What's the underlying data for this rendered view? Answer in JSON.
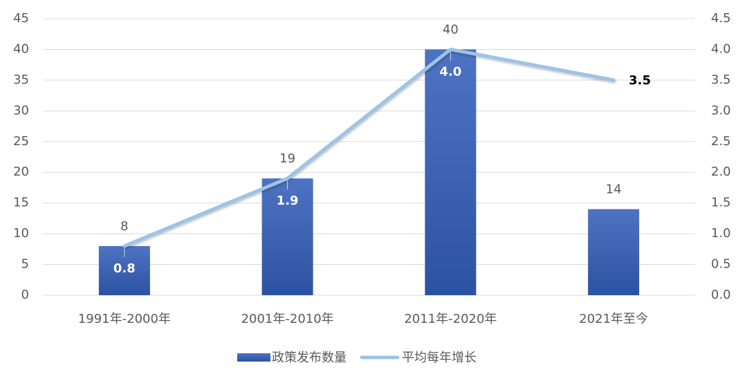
{
  "chart_data": {
    "type": "bar-line",
    "categories": [
      "1991年-2000年",
      "2001年-2010年",
      "2011年-2020年",
      "2021年至今"
    ],
    "series": [
      {
        "name": "政策发布数量",
        "type": "bar",
        "color": "#3a5fb0",
        "values": [
          8,
          19,
          40,
          14
        ]
      },
      {
        "name": "平均每年增长",
        "type": "line",
        "axis": "y2",
        "color": "#9dc3e6",
        "values": [
          0.8,
          1.9,
          4.0,
          3.5
        ],
        "value_labels": [
          "0.8",
          "1.9",
          "4.0",
          "3.5"
        ]
      }
    ],
    "ylim": [
      0,
      45
    ],
    "yticks": [
      0,
      5,
      10,
      15,
      20,
      25,
      30,
      35,
      40,
      45
    ],
    "y2lim": [
      0,
      4.5
    ],
    "y2ticks": [
      {
        "value": 0,
        "label": "0.0"
      },
      0.5,
      {
        "value": 1,
        "label": "1.0"
      },
      1.5,
      {
        "value": 2,
        "label": "2.0"
      },
      2.5,
      {
        "value": 3,
        "label": "3.0"
      },
      3.5,
      {
        "value": 4,
        "label": "4.0"
      },
      4.5
    ],
    "grid": true,
    "legend": "bottom"
  }
}
